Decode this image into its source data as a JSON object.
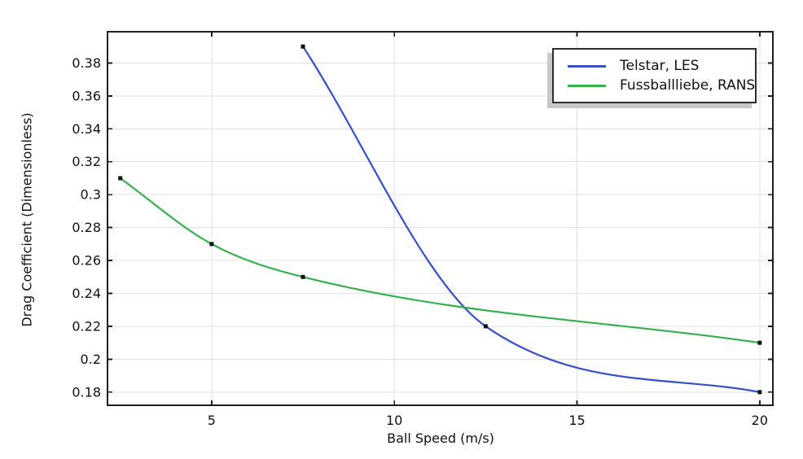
{
  "chart_data": {
    "type": "line",
    "title": "",
    "xlabel": "Ball Speed (m/s)",
    "ylabel": "Drag Coefficient (Dimensionless)",
    "xlim": [
      2.15,
      20.36
    ],
    "ylim": [
      0.172,
      0.399
    ],
    "xticks": [
      5,
      10,
      15,
      20
    ],
    "yticks": [
      0.18,
      0.2,
      0.22,
      0.24,
      0.26,
      0.28,
      0.3,
      0.32,
      0.34,
      0.36,
      0.38
    ],
    "grid": true,
    "smoothing": "monotone-cubic",
    "marker": "square",
    "legend_position": "top-right",
    "series": [
      {
        "name": "Telstar, LES",
        "color": "#3550C8",
        "x": [
          7.5,
          12.5,
          20
        ],
        "y": [
          0.39,
          0.22,
          0.18
        ]
      },
      {
        "name": "Fussballliebe, RANS",
        "color": "#35B04C",
        "x": [
          2.5,
          5,
          7.5,
          20
        ],
        "y": [
          0.31,
          0.27,
          0.25,
          0.21
        ]
      }
    ],
    "colors": {
      "grid": "#e0e0e0",
      "axis": "#1f1f1f",
      "text": "#111111",
      "marker": "#111111",
      "legend_border": "#2e2e2e",
      "legend_shadow": "#c8c8c8",
      "background": "#ffffff"
    }
  }
}
